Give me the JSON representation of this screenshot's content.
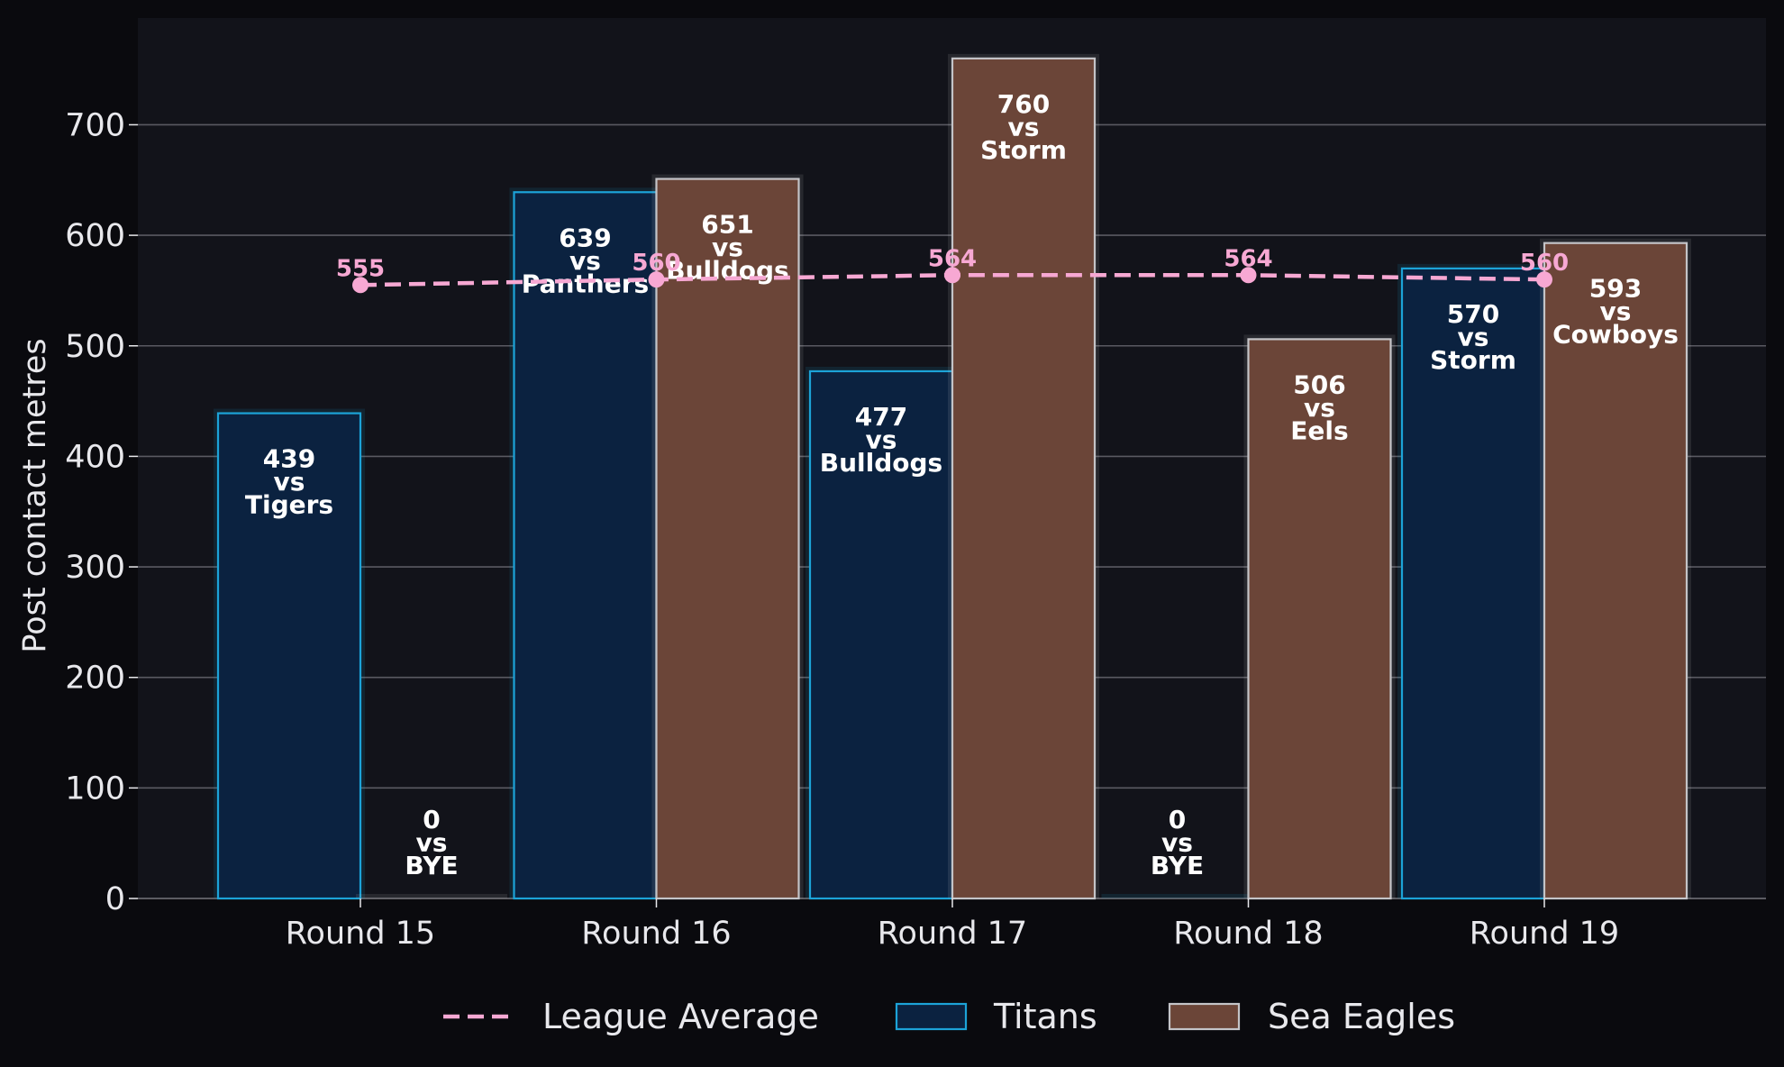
{
  "chart_data": {
    "type": "bar",
    "title": "",
    "xlabel": "",
    "ylabel": "Post contact metres",
    "ylim": [
      0,
      800
    ],
    "yticks": [
      0,
      100,
      200,
      300,
      400,
      500,
      600,
      700
    ],
    "grid": true,
    "legend_position": "bottom",
    "categories": [
      "Round 15",
      "Round 16",
      "Round 17",
      "Round 18",
      "Round 19"
    ],
    "series": [
      {
        "name": "Titans",
        "type": "bar",
        "color": "#0b2240",
        "edge_color": "#1ca3d8",
        "values": [
          439,
          639,
          477,
          0,
          570
        ],
        "opponents": [
          "Tigers",
          "Panthers",
          "Bulldogs",
          "BYE",
          "Storm"
        ]
      },
      {
        "name": "Sea Eagles",
        "type": "bar",
        "color": "#6b4538",
        "edge_color": "#c4c4c8",
        "values": [
          0,
          651,
          760,
          506,
          593
        ],
        "opponents": [
          "BYE",
          "Bulldogs",
          "Storm",
          "Eels",
          "Cowboys"
        ]
      },
      {
        "name": "League Average",
        "type": "line",
        "color": "#f7a8d3",
        "style": "dashed",
        "values": [
          555,
          560,
          564,
          564,
          560
        ]
      }
    ],
    "vs_word": "vs"
  },
  "colors": {
    "page_background": "#0a0a0e",
    "plot_background": "#12131a",
    "grid": "#5a5a62"
  }
}
